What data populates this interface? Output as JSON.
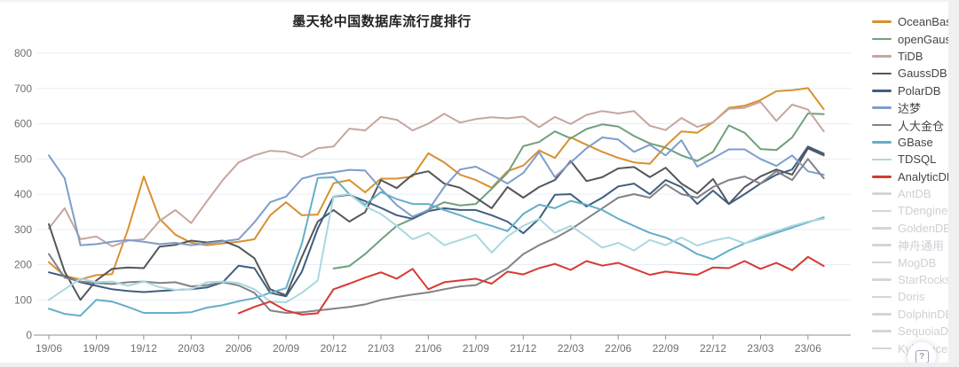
{
  "page": {
    "help_button_glyph": "?"
  },
  "chart_data": {
    "type": "line",
    "title": "墨天轮中国数据库流行度排行",
    "xlabel": "",
    "ylabel": "",
    "ylim": [
      0,
      800
    ],
    "y_ticks": [
      0,
      100,
      200,
      300,
      400,
      500,
      600,
      700,
      800
    ],
    "grid": "horizontal",
    "legend_position": "right",
    "x_months": [
      "19/06",
      "19/07",
      "19/08",
      "19/09",
      "19/10",
      "19/11",
      "19/12",
      "20/01",
      "20/02",
      "20/03",
      "20/04",
      "20/05",
      "20/06",
      "20/07",
      "20/08",
      "20/09",
      "20/10",
      "20/11",
      "20/12",
      "21/01",
      "21/02",
      "21/03",
      "21/04",
      "21/05",
      "21/06",
      "21/07",
      "21/08",
      "21/09",
      "21/10",
      "21/11",
      "21/12",
      "22/01",
      "22/02",
      "22/03",
      "22/04",
      "22/05",
      "22/06",
      "22/07",
      "22/08",
      "22/09",
      "22/10",
      "22/11",
      "22/12",
      "23/01",
      "23/02",
      "23/03",
      "23/04",
      "23/05",
      "23/06",
      "23/07"
    ],
    "x_tick_labels": [
      "19/06",
      "19/09",
      "19/12",
      "20/03",
      "20/06",
      "20/09",
      "20/12",
      "21/03",
      "21/06",
      "21/09",
      "21/12",
      "22/03",
      "22/06",
      "22/09",
      "22/12",
      "23/03",
      "23/06"
    ],
    "series": [
      {
        "name": "OceanBase",
        "color": "#d9902f",
        "values": [
          207,
          168,
          158,
          170,
          173,
          300,
          450,
          330,
          285,
          262,
          255,
          260,
          265,
          272,
          340,
          377,
          340,
          342,
          431,
          440,
          405,
          444,
          444,
          450,
          516,
          490,
          455,
          440,
          418,
          465,
          481,
          524,
          503,
          561,
          540,
          520,
          503,
          490,
          486,
          536,
          578,
          574,
          604,
          645,
          651,
          667,
          692,
          695,
          701,
          641
        ]
      },
      {
        "name": "openGauss",
        "color": "#6fa07a",
        "values": [
          null,
          null,
          null,
          null,
          null,
          null,
          null,
          null,
          null,
          null,
          null,
          null,
          null,
          null,
          null,
          null,
          null,
          null,
          189,
          196,
          230,
          271,
          310,
          330,
          356,
          377,
          368,
          372,
          415,
          460,
          536,
          548,
          578,
          558,
          585,
          598,
          592,
          565,
          544,
          532,
          510,
          494,
          520,
          595,
          574,
          528,
          525,
          561,
          629,
          627
        ]
      },
      {
        "name": "TiDB",
        "color": "#c6a69e",
        "values": [
          303,
          360,
          272,
          280,
          252,
          268,
          272,
          324,
          355,
          318,
          380,
          440,
          490,
          510,
          523,
          520,
          505,
          530,
          535,
          586,
          581,
          619,
          611,
          581,
          600,
          628,
          603,
          613,
          618,
          615,
          620,
          590,
          619,
          599,
          625,
          636,
          629,
          636,
          594,
          582,
          616,
          591,
          604,
          642,
          645,
          662,
          608,
          654,
          640,
          578
        ]
      },
      {
        "name": "GaussDB",
        "color": "#55565b",
        "values": [
          315,
          180,
          100,
          155,
          188,
          192,
          190,
          251,
          256,
          268,
          263,
          268,
          250,
          218,
          130,
          113,
          222,
          322,
          355,
          322,
          349,
          440,
          417,
          455,
          465,
          430,
          418,
          390,
          360,
          420,
          390,
          420,
          440,
          494,
          437,
          448,
          473,
          477,
          448,
          475,
          430,
          402,
          443,
          372,
          420,
          450,
          470,
          455,
          530,
          510
        ]
      },
      {
        "name": "PolarDB",
        "color": "#3f5e7e",
        "values": [
          178,
          167,
          150,
          140,
          130,
          125,
          122,
          125,
          128,
          130,
          135,
          150,
          197,
          190,
          120,
          110,
          180,
          302,
          393,
          398,
          380,
          361,
          340,
          330,
          352,
          360,
          355,
          355,
          340,
          322,
          289,
          330,
          398,
          400,
          365,
          390,
          422,
          430,
          400,
          440,
          420,
          372,
          410,
          372,
          400,
          430,
          455,
          470,
          535,
          515
        ]
      },
      {
        "name": "达梦",
        "color": "#7f9dcb",
        "values": [
          510,
          445,
          255,
          258,
          265,
          270,
          265,
          258,
          262,
          255,
          260,
          266,
          272,
          320,
          377,
          393,
          444,
          456,
          462,
          469,
          467,
          415,
          369,
          336,
          355,
          420,
          470,
          478,
          455,
          430,
          460,
          519,
          448,
          490,
          530,
          561,
          555,
          520,
          540,
          510,
          553,
          478,
          502,
          527,
          527,
          500,
          480,
          510,
          465,
          455
        ]
      },
      {
        "name": "人大金仓",
        "color": "#828287",
        "values": [
          230,
          163,
          152,
          148,
          145,
          150,
          152,
          148,
          150,
          138,
          142,
          150,
          141,
          120,
          70,
          63,
          65,
          70,
          75,
          80,
          87,
          100,
          108,
          115,
          121,
          130,
          138,
          142,
          165,
          190,
          230,
          255,
          275,
          300,
          330,
          360,
          390,
          400,
          390,
          428,
          400,
          390,
          420,
          440,
          450,
          430,
          465,
          440,
          500,
          445
        ]
      },
      {
        "name": "GBase",
        "color": "#64aec8",
        "values": [
          75,
          60,
          55,
          100,
          95,
          80,
          63,
          63,
          63,
          65,
          78,
          85,
          96,
          105,
          120,
          133,
          260,
          446,
          448,
          400,
          370,
          406,
          386,
          372,
          372,
          355,
          340,
          323,
          310,
          295,
          344,
          370,
          360,
          381,
          370,
          355,
          330,
          310,
          290,
          277,
          256,
          230,
          215,
          240,
          260,
          275,
          290,
          305,
          320,
          334
        ]
      },
      {
        "name": "TDSQL",
        "color": "#a9d8e0",
        "values": [
          100,
          130,
          160,
          150,
          152,
          140,
          152,
          136,
          128,
          130,
          150,
          152,
          148,
          130,
          95,
          93,
          120,
          155,
          394,
          400,
          365,
          344,
          310,
          272,
          290,
          255,
          270,
          285,
          234,
          280,
          310,
          330,
          290,
          310,
          280,
          248,
          262,
          240,
          270,
          255,
          277,
          254,
          268,
          277,
          260,
          280,
          295,
          310,
          322,
          330
        ]
      },
      {
        "name": "AnalyticDB",
        "color": "#d53a32",
        "values": [
          null,
          null,
          null,
          null,
          null,
          null,
          null,
          null,
          null,
          null,
          null,
          null,
          62,
          80,
          95,
          70,
          58,
          62,
          130,
          146,
          163,
          178,
          160,
          188,
          130,
          150,
          155,
          160,
          146,
          180,
          172,
          190,
          202,
          185,
          210,
          197,
          205,
          188,
          171,
          180,
          175,
          171,
          192,
          190,
          210,
          188,
          205,
          184,
          222,
          196
        ]
      }
    ],
    "legend_disabled": [
      "AntDB",
      "TDengine",
      "GoldenDB",
      "神舟通用",
      "MogDB",
      "StarRocks",
      "Doris",
      "DolphinDB",
      "SequoiaDB",
      "Kyligence"
    ],
    "disabled_color": "#d2d5da",
    "grid_color": "#e7edf6",
    "axis_line_color": "#8f8f8f",
    "axis_text_color": "#6f6f6f"
  }
}
